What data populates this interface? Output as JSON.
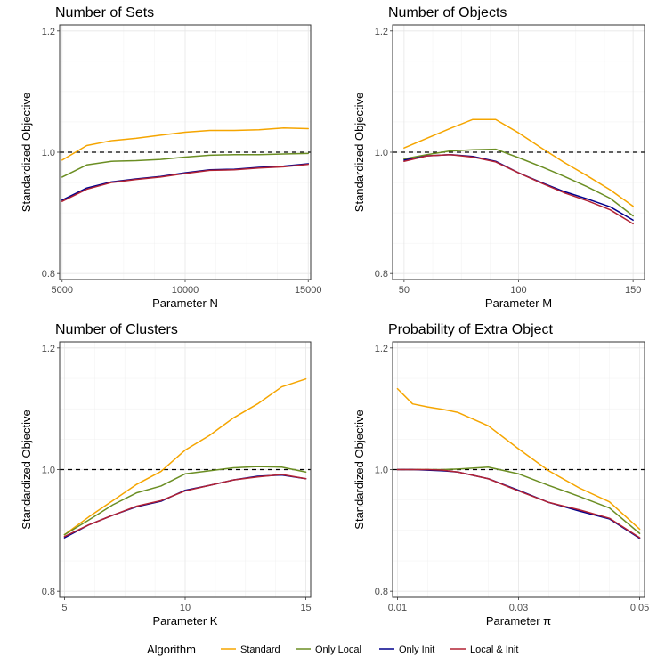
{
  "chart_data": [
    {
      "type": "line",
      "title": "Number of Sets",
      "xlabel": "Parameter N",
      "ylabel": "Standardized Objective",
      "xlim": [
        4900,
        15100
      ],
      "ylim": [
        0.79,
        1.21
      ],
      "xticks": [
        5000,
        10000,
        15000
      ],
      "yticks": [
        0.8,
        1.0,
        1.2
      ],
      "xtick_labels": [
        "5000",
        "10000",
        "15000"
      ],
      "ytick_labels": [
        "0.8",
        "1.0",
        "1.2"
      ],
      "reference_line": 1.0,
      "x": [
        5000,
        6000,
        7000,
        8000,
        9000,
        10000,
        11000,
        12000,
        13000,
        14000,
        15000
      ],
      "series": [
        {
          "name": "Standard",
          "values": [
            0.987,
            1.011,
            1.019,
            1.023,
            1.028,
            1.033,
            1.036,
            1.036,
            1.037,
            1.04,
            1.039
          ]
        },
        {
          "name": "Only Local",
          "values": [
            0.959,
            0.979,
            0.985,
            0.986,
            0.988,
            0.992,
            0.995,
            0.996,
            0.996,
            0.997,
            0.998
          ]
        },
        {
          "name": "Only Init",
          "values": [
            0.921,
            0.941,
            0.951,
            0.956,
            0.96,
            0.966,
            0.971,
            0.972,
            0.975,
            0.977,
            0.981
          ]
        },
        {
          "name": "Local & Init",
          "values": [
            0.919,
            0.939,
            0.95,
            0.955,
            0.959,
            0.965,
            0.97,
            0.971,
            0.974,
            0.976,
            0.98
          ]
        }
      ]
    },
    {
      "type": "line",
      "title": "Number of Objects",
      "xlabel": "Parameter M",
      "ylabel": "Standardized Objective",
      "xlim": [
        45,
        155
      ],
      "ylim": [
        0.79,
        1.21
      ],
      "xticks": [
        50,
        100,
        150
      ],
      "yticks": [
        0.8,
        1.0,
        1.2
      ],
      "xtick_labels": [
        "50",
        "100",
        "150"
      ],
      "ytick_labels": [
        "0.8",
        "1.0",
        "1.2"
      ],
      "reference_line": 1.0,
      "x": [
        50,
        60,
        70,
        80,
        90,
        100,
        110,
        120,
        130,
        140,
        150
      ],
      "series": [
        {
          "name": "Standard",
          "values": [
            1.007,
            1.023,
            1.039,
            1.054,
            1.054,
            1.032,
            1.007,
            0.983,
            0.961,
            0.938,
            0.911
          ]
        },
        {
          "name": "Only Local",
          "values": [
            0.989,
            0.996,
            1.002,
            1.004,
            1.005,
            0.991,
            0.976,
            0.96,
            0.943,
            0.924,
            0.895
          ]
        },
        {
          "name": "Only Init",
          "values": [
            0.987,
            0.994,
            0.996,
            0.993,
            0.985,
            0.966,
            0.95,
            0.935,
            0.923,
            0.91,
            0.888
          ]
        },
        {
          "name": "Local & Init",
          "values": [
            0.985,
            0.994,
            0.996,
            0.992,
            0.984,
            0.966,
            0.949,
            0.933,
            0.92,
            0.905,
            0.882
          ]
        }
      ]
    },
    {
      "type": "line",
      "title": "Number of Clusters",
      "xlabel": "Parameter K",
      "ylabel": "Standardized Objective",
      "xlim": [
        4.8,
        15.2
      ],
      "ylim": [
        0.79,
        1.21
      ],
      "xticks": [
        5,
        10,
        15
      ],
      "yticks": [
        0.8,
        1.0,
        1.2
      ],
      "xtick_labels": [
        "5",
        "10",
        "15"
      ],
      "ytick_labels": [
        "0.8",
        "1.0",
        "1.2"
      ],
      "reference_line": 1.0,
      "x": [
        5,
        6,
        7,
        8,
        9,
        10,
        11,
        12,
        13,
        14,
        15
      ],
      "series": [
        {
          "name": "Standard",
          "values": [
            0.893,
            0.922,
            0.949,
            0.976,
            0.997,
            1.032,
            1.056,
            1.085,
            1.108,
            1.136,
            1.149
          ]
        },
        {
          "name": "Only Local",
          "values": [
            0.893,
            0.917,
            0.942,
            0.962,
            0.973,
            0.993,
            0.998,
            1.003,
            1.005,
            1.004,
            0.996
          ]
        },
        {
          "name": "Only Init",
          "values": [
            0.888,
            0.909,
            0.925,
            0.939,
            0.948,
            0.966,
            0.974,
            0.983,
            0.989,
            0.991,
            0.985
          ]
        },
        {
          "name": "Local & Init",
          "values": [
            0.89,
            0.909,
            0.925,
            0.94,
            0.949,
            0.965,
            0.974,
            0.983,
            0.988,
            0.992,
            0.985
          ]
        }
      ]
    },
    {
      "type": "line",
      "title": "Probability of Extra Object",
      "xlabel": "Parameter π",
      "ylabel": "Standardized Objective",
      "xlim": [
        0.0092,
        0.0508
      ],
      "ylim": [
        0.79,
        1.21
      ],
      "xticks": [
        0.01,
        0.03,
        0.05
      ],
      "yticks": [
        0.8,
        1.0,
        1.2
      ],
      "xtick_labels": [
        "0.01",
        "0.03",
        "0.05"
      ],
      "ytick_labels": [
        "0.8",
        "1.0",
        "1.2"
      ],
      "reference_line": 1.0,
      "x": [
        0.01,
        0.0125,
        0.015,
        0.0175,
        0.02,
        0.025,
        0.03,
        0.035,
        0.04,
        0.045,
        0.05
      ],
      "series": [
        {
          "name": "Standard",
          "values": [
            1.133,
            1.108,
            1.103,
            1.099,
            1.094,
            1.072,
            1.034,
            0.998,
            0.97,
            0.947,
            0.902
          ]
        },
        {
          "name": "Only Local",
          "values": [
            1.0,
            1.0,
            1.0,
            1.0,
            1.001,
            1.004,
            0.993,
            0.974,
            0.956,
            0.937,
            0.895
          ]
        },
        {
          "name": "Only Init",
          "values": [
            1.0,
            1.0,
            0.999,
            0.998,
            0.996,
            0.985,
            0.966,
            0.946,
            0.932,
            0.919,
            0.887
          ]
        },
        {
          "name": "Local & Init",
          "values": [
            1.0,
            1.0,
            1.0,
            0.999,
            0.996,
            0.985,
            0.965,
            0.946,
            0.934,
            0.92,
            0.888
          ]
        }
      ]
    }
  ],
  "legend": {
    "title": "Algorithm",
    "entries": [
      {
        "name": "Standard",
        "color": "#f5a500"
      },
      {
        "name": "Only Local",
        "color": "#6b8e23"
      },
      {
        "name": "Only Init",
        "color": "#00008b"
      },
      {
        "name": "Local & Init",
        "color": "#b22234"
      }
    ]
  }
}
